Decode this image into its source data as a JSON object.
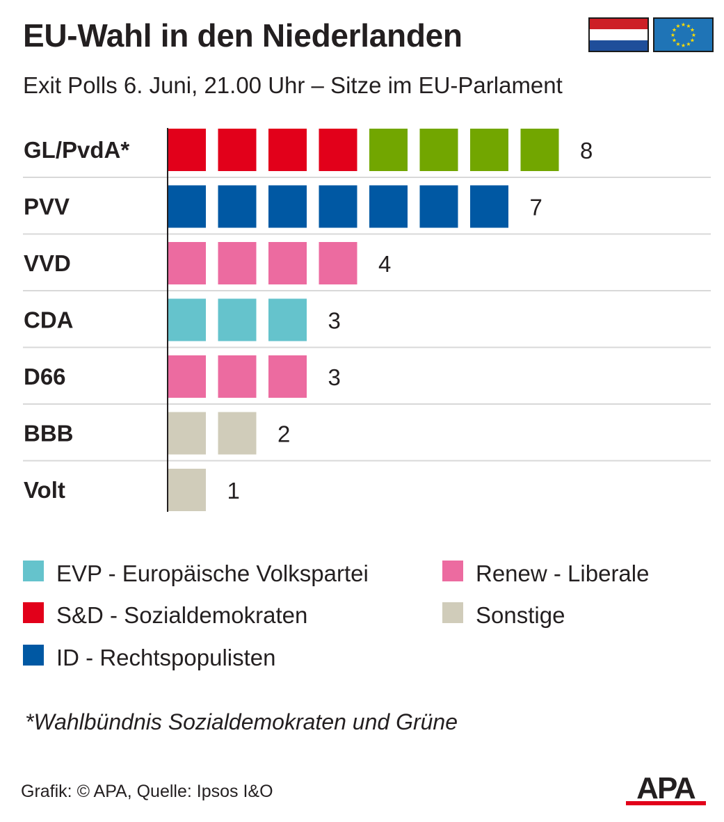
{
  "header": {
    "title": "EU-Wahl in den Niederlanden",
    "subtitle": "Exit Polls 6. Juni, 21.00 Uhr – Sitze im EU-Parlament"
  },
  "flags": {
    "netherlands": [
      "#cd1f26",
      "#ffffff",
      "#1f4e9a"
    ],
    "eu": {
      "background": "#1f74b6",
      "stars": "#ffdd00"
    }
  },
  "colors": {
    "sd": "#e2001a",
    "gruene": "#72a600",
    "id": "#0058a3",
    "renew": "#ec6ba0",
    "evp": "#65c3cc",
    "sonstige": "#d0ccba",
    "grid": "#d8d8d8",
    "axis": "#231f20"
  },
  "chart_data": {
    "type": "bar",
    "title": "EU-Wahl in den Niederlanden",
    "subtitle": "Exit Polls 6. Juni, 21.00 Uhr – Sitze im EU-Parlament",
    "categories": [
      "GL/PvdA*",
      "PVV",
      "VVD",
      "CDA",
      "D66",
      "BBB",
      "Volt"
    ],
    "values": [
      8,
      7,
      4,
      3,
      3,
      2,
      1
    ],
    "seat_groups": [
      [
        "sd",
        "sd",
        "sd",
        "sd",
        "gruene",
        "gruene",
        "gruene",
        "gruene"
      ],
      [
        "id",
        "id",
        "id",
        "id",
        "id",
        "id",
        "id"
      ],
      [
        "renew",
        "renew",
        "renew",
        "renew"
      ],
      [
        "evp",
        "evp",
        "evp"
      ],
      [
        "renew",
        "renew",
        "renew"
      ],
      [
        "sonstige",
        "sonstige"
      ],
      [
        "sonstige"
      ]
    ],
    "orientation": "horizontal",
    "grid": true
  },
  "legend": [
    {
      "key": "evp",
      "label": "EVP - Europäische Volkspartei"
    },
    {
      "key": "sd",
      "label": "S&D - Sozialdemokraten"
    },
    {
      "key": "id",
      "label": "ID - Rechtspopulisten"
    },
    {
      "key": "renew",
      "label": "Renew - Liberale"
    },
    {
      "key": "sonstige",
      "label": "Sonstige"
    }
  ],
  "footnote": "*Wahlbündnis Sozialdemokraten und Grüne",
  "source": "Grafik: © APA, Quelle: Ipsos I&O",
  "logo": {
    "text": "APA",
    "color": "#231f20",
    "accent": "#e2001a"
  }
}
